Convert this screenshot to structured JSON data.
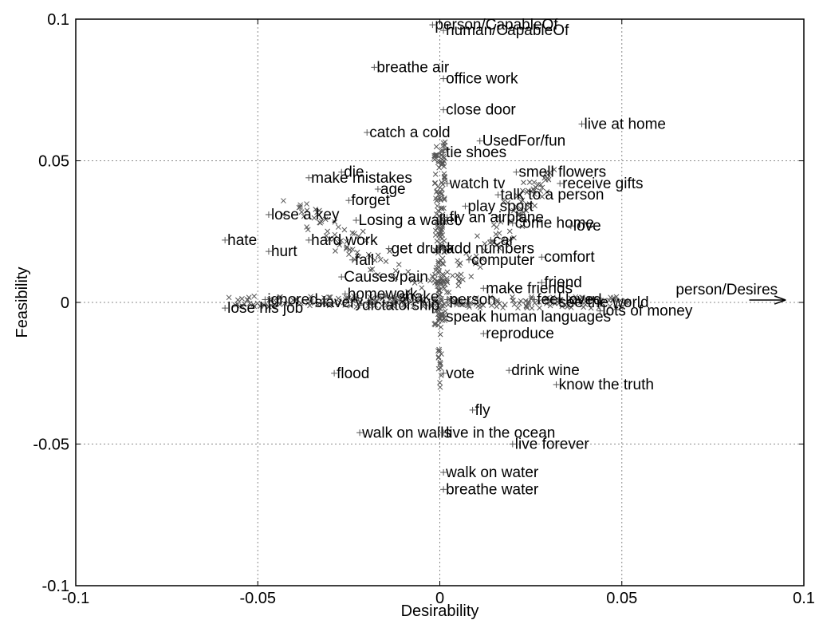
{
  "chart_data": {
    "type": "scatter",
    "xlabel": "Desirability",
    "ylabel": "Feasibility",
    "xlim": [
      -0.1,
      0.1
    ],
    "ylim": [
      -0.1,
      0.1
    ],
    "grid": true,
    "x_ticks": [
      -0.1,
      -0.05,
      0,
      0.05,
      0.1
    ],
    "y_ticks": [
      -0.1,
      -0.05,
      0,
      0.05,
      0.1
    ],
    "x_tick_labels": [
      "-0.1",
      "-0.05",
      "0",
      "0.05",
      "0.1"
    ],
    "y_tick_labels": [
      "-0.1",
      "-0.05",
      "0",
      "0.05",
      "0.1"
    ],
    "arrow": {
      "label": "person/Desires",
      "from": [
        0.085,
        0.0
      ],
      "to": [
        0.095,
        0.0
      ]
    },
    "points": [
      {
        "label": "person/CapableOf",
        "x": -0.002,
        "y": 0.098
      },
      {
        "label": "human/CapableOf",
        "x": 0.001,
        "y": 0.096
      },
      {
        "label": "breathe air",
        "x": -0.018,
        "y": 0.083
      },
      {
        "label": "office work",
        "x": 0.001,
        "y": 0.079
      },
      {
        "label": "close door",
        "x": 0.001,
        "y": 0.068
      },
      {
        "label": "catch a cold",
        "x": -0.02,
        "y": 0.06
      },
      {
        "label": "UsedFor/fun",
        "x": 0.011,
        "y": 0.057
      },
      {
        "label": "live at home",
        "x": 0.039,
        "y": 0.063
      },
      {
        "label": "tie shoes",
        "x": 0.001,
        "y": 0.053
      },
      {
        "label": "die",
        "x": -0.027,
        "y": 0.046
      },
      {
        "label": "make mistakes",
        "x": -0.036,
        "y": 0.044
      },
      {
        "label": "age",
        "x": -0.017,
        "y": 0.04
      },
      {
        "label": "watch tv",
        "x": 0.002,
        "y": 0.042
      },
      {
        "label": "smell flowers",
        "x": 0.021,
        "y": 0.046
      },
      {
        "label": "receive gifts",
        "x": 0.033,
        "y": 0.042
      },
      {
        "label": "talk to a person",
        "x": 0.016,
        "y": 0.038
      },
      {
        "label": "forget",
        "x": -0.025,
        "y": 0.036
      },
      {
        "label": "play sport",
        "x": 0.007,
        "y": 0.034
      },
      {
        "label": "lose a key",
        "x": -0.047,
        "y": 0.031
      },
      {
        "label": "Losing a wallet",
        "x": -0.023,
        "y": 0.029
      },
      {
        "label": "fly an airplane",
        "x": 0.002,
        "y": 0.03
      },
      {
        "label": "come home",
        "x": 0.02,
        "y": 0.028
      },
      {
        "label": "love",
        "x": 0.036,
        "y": 0.027
      },
      {
        "label": "hate",
        "x": -0.059,
        "y": 0.022
      },
      {
        "label": "hard work",
        "x": -0.036,
        "y": 0.022
      },
      {
        "label": "car",
        "x": 0.014,
        "y": 0.022
      },
      {
        "label": "get drunk",
        "x": -0.014,
        "y": 0.019
      },
      {
        "label": "add numbers",
        "x": 0.001,
        "y": 0.019
      },
      {
        "label": "hurt",
        "x": -0.047,
        "y": 0.018
      },
      {
        "label": "comfort",
        "x": 0.028,
        "y": 0.016
      },
      {
        "label": "fall",
        "x": -0.024,
        "y": 0.015
      },
      {
        "label": "computer",
        "x": 0.008,
        "y": 0.015
      },
      {
        "label": "Causes/pain",
        "x": -0.027,
        "y": 0.009
      },
      {
        "label": "friend",
        "x": 0.028,
        "y": 0.007
      },
      {
        "label": "make friends",
        "x": 0.012,
        "y": 0.005
      },
      {
        "label": "homework",
        "x": -0.026,
        "y": 0.003
      },
      {
        "label": "snake",
        "x": -0.012,
        "y": 0.002
      },
      {
        "label": "person",
        "x": 0.002,
        "y": 0.001
      },
      {
        "label": "feel loved",
        "x": 0.026,
        "y": 0.001
      },
      {
        "label": "ignored",
        "x": -0.048,
        "y": 0.001
      },
      {
        "label": "slavery",
        "x": -0.035,
        "y": 0.0
      },
      {
        "label": "dictatorship",
        "x": -0.022,
        "y": -0.001
      },
      {
        "label": "see the world",
        "x": 0.032,
        "y": 0.0
      },
      {
        "label": "lose his job",
        "x": -0.059,
        "y": -0.002
      },
      {
        "label": "lots of money",
        "x": 0.044,
        "y": -0.003
      },
      {
        "label": "speak human languages",
        "x": 0.001,
        "y": -0.005
      },
      {
        "label": "reproduce",
        "x": 0.012,
        "y": -0.011
      },
      {
        "label": "flood",
        "x": -0.029,
        "y": -0.025
      },
      {
        "label": "vote",
        "x": 0.001,
        "y": -0.025
      },
      {
        "label": "drink wine",
        "x": 0.019,
        "y": -0.024
      },
      {
        "label": "know the truth",
        "x": 0.032,
        "y": -0.029
      },
      {
        "label": "fly",
        "x": 0.009,
        "y": -0.038
      },
      {
        "label": "walk on walls",
        "x": -0.022,
        "y": -0.046
      },
      {
        "label": "live in the ocean",
        "x": 0.001,
        "y": -0.046
      },
      {
        "label": "live forever",
        "x": 0.02,
        "y": -0.05
      },
      {
        "label": "walk on water",
        "x": 0.001,
        "y": -0.06
      },
      {
        "label": "breathe water",
        "x": 0.001,
        "y": -0.066
      }
    ]
  }
}
